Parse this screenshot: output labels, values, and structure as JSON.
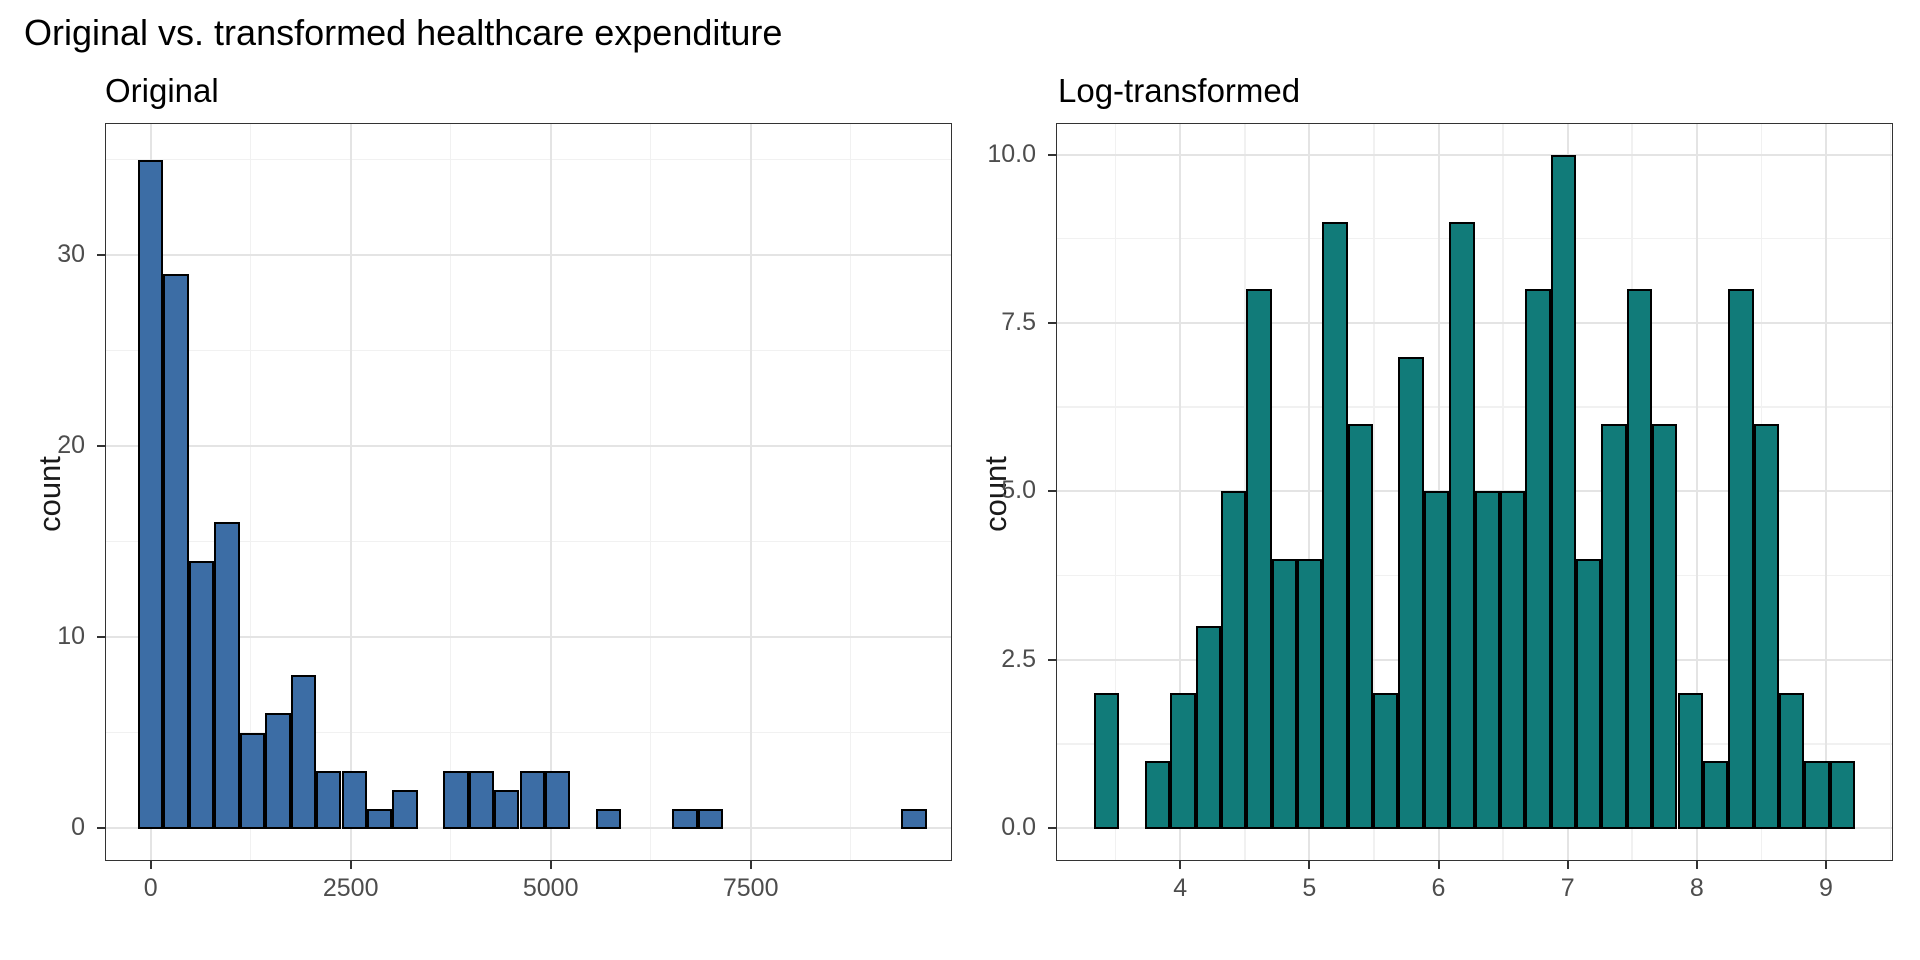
{
  "title": "Original vs. transformed healthcare expenditure",
  "colors": {
    "background": "#ffffff",
    "major_grid": "#E4E4E4",
    "minor_grid": "#F1F1F1",
    "panel_border": "#333333",
    "tick_mark": "#333333",
    "tick_text": "#4D4D4D",
    "title_text": "#000000",
    "left_bar_fill": "#3C6DA5",
    "right_bar_fill": "#117B79",
    "bar_stroke": "#000000"
  },
  "chart_data": [
    {
      "type": "bar",
      "title": "Original",
      "xlabel": "",
      "ylabel": "count",
      "fill": "#3C6DA5",
      "bin_start": -159,
      "bin_width": 318,
      "counts": [
        35,
        29,
        14,
        16,
        5,
        6,
        8,
        3,
        3,
        1,
        2,
        0,
        3,
        3,
        2,
        3,
        3,
        0,
        1,
        0,
        0,
        1,
        1,
        0,
        0,
        0,
        0,
        0,
        0,
        0,
        1
      ],
      "x_ticks": [
        0,
        2500,
        5000,
        7500
      ],
      "x_tick_labels": [
        "0",
        "2500",
        "5000",
        "7500"
      ],
      "x_minor": [
        1250,
        3750,
        6250,
        8750
      ],
      "y_ticks": [
        0,
        10,
        20,
        30
      ],
      "y_tick_labels": [
        "0",
        "10",
        "20",
        "30"
      ],
      "y_minor": [
        5,
        15,
        25,
        35
      ],
      "ylim": [
        0,
        36.75
      ],
      "grid": true,
      "legend": false
    },
    {
      "type": "bar",
      "title": "Log-transformed",
      "xlabel": "",
      "ylabel": "count",
      "fill": "#117B79",
      "bin_start": 3.333,
      "bin_width": 0.1964,
      "counts": [
        2,
        0,
        1,
        2,
        3,
        5,
        8,
        4,
        4,
        9,
        6,
        2,
        7,
        5,
        9,
        5,
        5,
        8,
        10,
        4,
        6,
        8,
        6,
        2,
        1,
        8,
        6,
        2,
        1,
        1
      ],
      "x_ticks": [
        4,
        5,
        6,
        7,
        8,
        9
      ],
      "x_tick_labels": [
        "4",
        "5",
        "6",
        "7",
        "8",
        "9"
      ],
      "x_minor": [
        3.5,
        4.5,
        5.5,
        6.5,
        7.5,
        8.5,
        9.5
      ],
      "y_ticks": [
        0,
        2.5,
        5,
        7.5,
        10
      ],
      "y_tick_labels": [
        "0.0",
        "2.5",
        "5.0",
        "7.5",
        "10.0"
      ],
      "y_minor": [
        1.25,
        3.75,
        6.25,
        8.75
      ],
      "ylim": [
        0,
        10.5
      ],
      "grid": true,
      "legend": false
    }
  ]
}
